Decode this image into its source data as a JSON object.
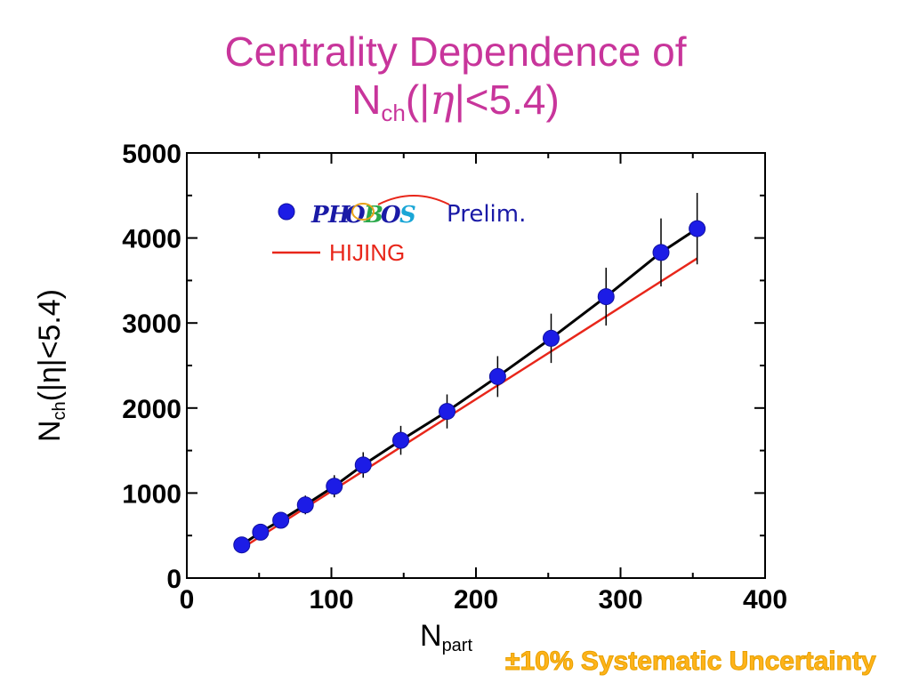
{
  "title": {
    "line1": "Centrality Dependence of",
    "line2_main": "N",
    "line2_sub": "ch",
    "line2_paren_open": "(|",
    "line2_eta": "η",
    "line2_rest": "|<5.4)"
  },
  "footnote": "±10% Systematic Uncertainty",
  "chart_data": {
    "type": "scatter",
    "xlabel_main": "N",
    "xlabel_sub": "part",
    "ylabel_main": "N",
    "ylabel_sub": "ch",
    "ylabel_rest": "(|η|<5.4)",
    "xlim": [
      0,
      400
    ],
    "ylim": [
      0,
      5000
    ],
    "x_ticks": [
      0,
      100,
      200,
      300,
      400
    ],
    "y_ticks": [
      0,
      1000,
      2000,
      3000,
      4000,
      5000
    ],
    "grid": false,
    "legend_position": "top-left",
    "series": [
      {
        "name": "Prelim.",
        "legend_logo": "PHOBOS",
        "style": "points-with-errorbars-and-line",
        "color": "#1c1ce6",
        "line_color": "#000000",
        "points": [
          {
            "x": 38,
            "y": 390,
            "err": 60
          },
          {
            "x": 51,
            "y": 540,
            "err": 80
          },
          {
            "x": 65,
            "y": 680,
            "err": 95
          },
          {
            "x": 82,
            "y": 860,
            "err": 110
          },
          {
            "x": 102,
            "y": 1080,
            "err": 130
          },
          {
            "x": 122,
            "y": 1330,
            "err": 150
          },
          {
            "x": 148,
            "y": 1620,
            "err": 170
          },
          {
            "x": 180,
            "y": 1960,
            "err": 200
          },
          {
            "x": 215,
            "y": 2370,
            "err": 240
          },
          {
            "x": 252,
            "y": 2820,
            "err": 290
          },
          {
            "x": 290,
            "y": 3310,
            "err": 340
          },
          {
            "x": 328,
            "y": 3830,
            "err": 400
          },
          {
            "x": 353,
            "y": 4110,
            "err": 420
          }
        ]
      },
      {
        "name": "HIJING",
        "style": "line",
        "color": "#e8261a",
        "x": [
          38,
          353
        ],
        "y": [
          350,
          3760
        ]
      }
    ]
  }
}
